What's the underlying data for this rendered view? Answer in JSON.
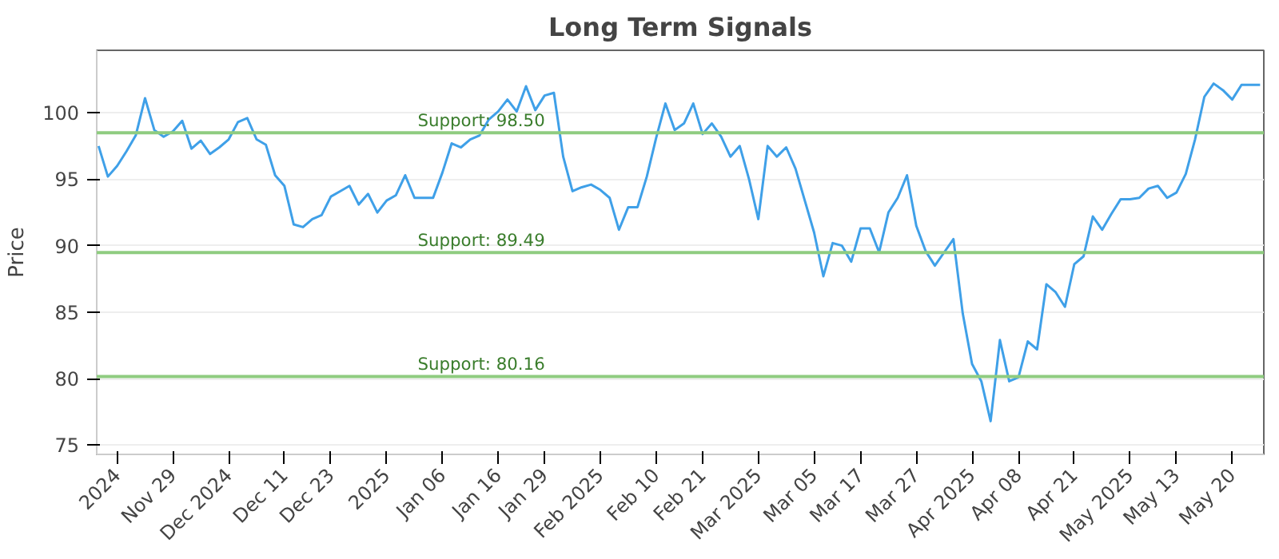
{
  "chart_data": {
    "type": "line",
    "title": "Long Term Signals",
    "ylabel": "Price",
    "categories": [
      null,
      null,
      "2024",
      null,
      null,
      null,
      null,
      null,
      "Nov 29",
      null,
      null,
      null,
      null,
      null,
      "Dec 2024",
      null,
      null,
      null,
      null,
      null,
      "Dec 11",
      null,
      null,
      null,
      null,
      "Dec 23",
      null,
      null,
      null,
      null,
      null,
      "2025",
      null,
      null,
      null,
      null,
      null,
      "Jan 06",
      null,
      null,
      null,
      null,
      null,
      "Jan 16",
      null,
      null,
      null,
      null,
      "Jan 29",
      null,
      null,
      null,
      null,
      null,
      "Feb 2025",
      null,
      null,
      null,
      null,
      null,
      "Feb 10",
      null,
      null,
      null,
      null,
      "Feb 21",
      null,
      null,
      null,
      null,
      null,
      "Mar 2025",
      null,
      null,
      null,
      null,
      null,
      "Mar 05",
      null,
      null,
      null,
      null,
      "Mar 17",
      null,
      null,
      null,
      null,
      null,
      "Mar 27",
      null,
      null,
      null,
      null,
      null,
      "Apr 2025",
      null,
      null,
      null,
      null,
      "Apr 08",
      null,
      null,
      null,
      null,
      null,
      "Apr 21",
      null,
      null,
      null,
      null,
      null,
      "May 2025",
      null,
      null,
      null,
      null,
      "May 13",
      null,
      null,
      null,
      null,
      null,
      "May 20",
      null,
      null,
      null
    ],
    "series": [
      {
        "color": "#3fa0e8",
        "values": [
          97.5,
          95.2,
          96.0,
          97.1,
          98.3,
          101.1,
          98.7,
          98.2,
          98.6,
          99.4,
          97.3,
          97.9,
          96.9,
          97.4,
          98.0,
          99.3,
          99.6,
          98.0,
          97.6,
          95.3,
          94.5,
          91.6,
          91.4,
          92.0,
          92.3,
          93.7,
          94.1,
          94.5,
          93.1,
          93.9,
          92.5,
          93.4,
          93.8,
          95.3,
          93.6,
          93.6,
          93.6,
          95.5,
          97.7,
          97.4,
          98.0,
          98.3,
          99.5,
          100.1,
          101.0,
          100.1,
          102.0,
          100.2,
          101.3,
          101.5,
          96.7,
          94.1,
          94.4,
          94.6,
          94.2,
          93.6,
          91.2,
          92.9,
          92.9,
          95.2,
          98.1,
          100.7,
          98.7,
          99.2,
          100.7,
          98.4,
          99.2,
          98.2,
          96.7,
          97.5,
          95.0,
          92.0,
          97.5,
          96.7,
          97.4,
          95.8,
          93.4,
          91.0,
          87.7,
          90.2,
          90.0,
          88.8,
          91.3,
          91.3,
          89.5,
          92.5,
          93.6,
          95.3,
          91.5,
          89.6,
          88.5,
          89.5,
          90.5,
          84.9,
          81.1,
          79.8,
          76.8,
          82.9,
          79.8,
          80.1,
          82.8,
          82.2,
          87.1,
          86.5,
          85.4,
          88.6,
          89.2,
          92.2,
          91.2,
          92.4,
          93.5,
          93.5,
          93.6,
          94.3,
          94.5,
          93.6,
          94.0,
          95.4,
          98.0,
          101.2,
          102.2,
          101.7,
          101.0,
          102.1,
          102.1,
          102.1
        ]
      }
    ],
    "ylim": [
      74.3,
      104.7
    ],
    "yticks": [
      75,
      80,
      85,
      90,
      95,
      100
    ],
    "grid": "y",
    "marker": "none",
    "line_style": "solid",
    "ref_lines": [
      {
        "axis": "y",
        "value": 98.5,
        "label": "Support: 98.50",
        "color": "#8fcc80"
      },
      {
        "axis": "y",
        "value": 89.49,
        "label": "Support: 89.49",
        "color": "#8fcc80"
      },
      {
        "axis": "y",
        "value": 80.16,
        "label": "Support: 80.16",
        "color": "#8fcc80"
      }
    ]
  }
}
